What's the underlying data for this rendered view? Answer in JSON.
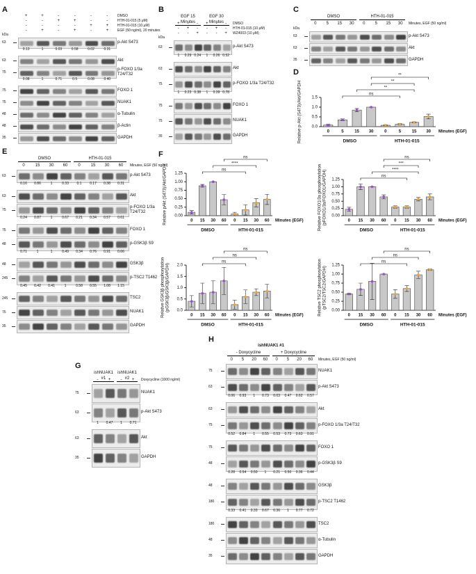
{
  "panels": [
    {
      "letter": "A",
      "rows": [
        {
          "label": "DMSO",
          "lanes": [
            "+",
            "+",
            "-",
            "-",
            "-",
            "-"
          ]
        },
        {
          "label": "HTH-01-015 (5 μM)",
          "lanes": [
            "-",
            "-",
            "+",
            "+",
            "-",
            "-"
          ]
        },
        {
          "label": "HTH-01-015 (10 μM)",
          "lanes": [
            "-",
            "-",
            "-",
            "-",
            "+",
            "+"
          ]
        },
        {
          "label": "EGF (50 ng/ml), 20 minutes",
          "lanes": [
            "-",
            "+",
            "-",
            "+",
            "-",
            "+"
          ]
        }
      ],
      "kda_label": "kDa",
      "blots": [
        {
          "label": "p-Akt S473",
          "kda": "63",
          "quant": [
            "0.13",
            "1",
            "0.03",
            "0.58",
            "0.02",
            "0.31"
          ]
        },
        {
          "label": "Akt",
          "kda": "63"
        },
        {
          "label": "p-FOXO 1/3a T24/T32",
          "kda": "75",
          "quant": [
            "0.08",
            "1",
            "0.71",
            "0.5",
            "0.08",
            "0.40"
          ]
        },
        {
          "label": "FOXO 1",
          "kda": "75"
        },
        {
          "label": "NUAK1",
          "kda": "75"
        },
        {
          "label": "α-Tubulin",
          "kda": "48"
        },
        {
          "label": "β-Actin",
          "kda": "48"
        },
        {
          "label": "GAPDH",
          "kda": "35"
        }
      ]
    },
    {
      "letter": "B",
      "groups": [
        "EGF 15 Minutes",
        "EGF 30 Minutes"
      ],
      "rows": [
        {
          "label": "DMSO",
          "lanes": [
            "+",
            "-",
            "-",
            "+",
            "-",
            "-"
          ]
        },
        {
          "label": "HTH-01-015 (10 μM)",
          "lanes": [
            "-",
            "+",
            "-",
            "-",
            "+",
            "-"
          ]
        },
        {
          "label": "WZ4003 (10 μM)",
          "lanes": [
            "-",
            "-",
            "+",
            "-",
            "-",
            "+"
          ]
        }
      ],
      "kda_label": "kDa",
      "blots": [
        {
          "label": "p-Akt S473",
          "kda": "63",
          "quant": [
            "1",
            "0.29",
            "0.24",
            "1",
            "0.26",
            "0.52"
          ]
        },
        {
          "label": "Akt",
          "kda": "63"
        },
        {
          "label": "p-FOXO 1/3a T24/T32",
          "kda": "75",
          "quant": [
            "1",
            "0.23",
            "0.38",
            "1",
            "0.39",
            "0.78"
          ]
        },
        {
          "label": "FOXO 1",
          "kda": "75"
        },
        {
          "label": "NUAK1",
          "kda": "75"
        },
        {
          "label": "GAPDH",
          "kda": "35"
        }
      ]
    },
    {
      "letter": "C",
      "groups": [
        "DMSO",
        "HTH-01-015"
      ],
      "rows": [
        {
          "label": "Minutes, EGF (50 ng/ml)",
          "lanes": [
            "0",
            "5",
            "15",
            "30",
            "0",
            "5",
            "15",
            "30"
          ]
        }
      ],
      "kda_label": "kDa",
      "blots": [
        {
          "label": "p-Akt S473",
          "kda": "63"
        },
        {
          "label": "Akt",
          "kda": "63"
        },
        {
          "label": "GAPDH",
          "kda": "35"
        }
      ]
    },
    {
      "letter": "E",
      "groups": [
        "DMSO",
        "HTH-01-015"
      ],
      "rows": [
        {
          "label": "Minutes, EGF (50 ng/ml)",
          "lanes": [
            "0",
            "15",
            "30",
            "60",
            "0",
            "15",
            "30",
            "60"
          ]
        }
      ],
      "blots": [
        {
          "label": "p-Akt S473",
          "kda": "63",
          "quant": [
            "0.16",
            "0.86",
            "1",
            "0.33",
            "0.1",
            "0.17",
            "0.38",
            "0.31"
          ]
        },
        {
          "label": "Akt",
          "kda": "63"
        },
        {
          "label": "p-FOXO 1/3a T24/T32",
          "kda": "75",
          "quant": [
            "0.24",
            "0.87",
            "1",
            "0.67",
            "0.21",
            "0.34",
            "0.57",
            "0.61"
          ]
        },
        {
          "label": "FOXO 1",
          "kda": "75"
        },
        {
          "label": "p-GSK3β S9",
          "kda": "48",
          "quant": [
            "0.71",
            "1",
            "1",
            "0.49",
            "0.34",
            "0.76",
            "0.91",
            "0.66"
          ]
        },
        {
          "label": "GSK3β",
          "kda": "48"
        },
        {
          "label": "p-TSC2 T1462",
          "kda": "245",
          "quant": [
            "0.45",
            "0.42",
            "0.41",
            "1",
            "0.58",
            "0.55",
            "1.08",
            "1.15"
          ]
        },
        {
          "label": "TSC2",
          "kda": "245"
        },
        {
          "label": "NUAK1",
          "kda": "75"
        },
        {
          "label": "GAPDH",
          "kda": "35"
        }
      ]
    },
    {
      "letter": "G",
      "groups": [
        "ishNUAK1 #1",
        "ishNUAK1 #2"
      ],
      "rows": [
        {
          "label": "Doxycycline (1000 ng/ml)",
          "lanes": [
            "-",
            "+",
            "-",
            "+"
          ]
        }
      ],
      "blots": [
        {
          "label": "NUAK1",
          "kda": "75"
        },
        {
          "label": "p-Akt S473",
          "kda": "63",
          "quant": [
            "1",
            "0.47",
            "1",
            "0.71"
          ]
        },
        {
          "label": "Akt",
          "kda": "63"
        },
        {
          "label": "GAPDH",
          "kda": "35"
        }
      ]
    },
    {
      "letter": "H",
      "title": "ishNUAK1 #1",
      "groups": [
        "- Doxycycline",
        "+ Doxycycline"
      ],
      "rows": [
        {
          "label": "Minutes,  EGF (50 ng/ml)",
          "lanes": [
            "0",
            "5",
            "20",
            "60",
            "0",
            "5",
            "20",
            "60"
          ]
        }
      ],
      "blots": [
        {
          "label": "NUAK1",
          "kda": "75"
        },
        {
          "label": "p-Akt S473",
          "kda": "63",
          "quant": [
            "0.06",
            "0.93",
            "1",
            "0.73",
            "0.03",
            "0.47",
            "0.62",
            "0.57"
          ]
        },
        {
          "label": "Akt",
          "kda": "63"
        },
        {
          "label": "p-FOXO 1/3a T24/T32",
          "kda": "75",
          "quant": [
            "0.52",
            "0.84",
            "1",
            "0.55",
            "0.53",
            "0.73",
            "0.63",
            "0.91"
          ]
        },
        {
          "label": "FOXO 1",
          "kda": "75"
        },
        {
          "label": "p-GSK3β S9",
          "kda": "48",
          "quant": [
            "0.28",
            "0.54",
            "0.50",
            "1",
            "0.21",
            "0.50",
            "0.36",
            "0.44"
          ]
        },
        {
          "label": "GSK3β",
          "kda": "48"
        },
        {
          "label": "p-TSC2 T1462",
          "kda": "180",
          "quant": [
            "0.33",
            "0.41",
            "0.33",
            "0.67",
            "0.36",
            "1",
            "0.77",
            "0.72"
          ]
        },
        {
          "label": "TSC2",
          "kda": "180"
        },
        {
          "label": "α-Tubulin",
          "kda": "48"
        },
        {
          "label": "GAPDH",
          "kda": "35"
        }
      ]
    }
  ],
  "chart_data": [
    {
      "type": "bar",
      "panel": "D",
      "ylabel": [
        "Relative p-Akt (S473)/Akt/GAPDH"
      ],
      "categories": [
        "0",
        "5",
        "15",
        "30",
        "0",
        "5",
        "15",
        "30"
      ],
      "xlabel": "Minutes (EGF)",
      "groups": [
        "DMSO",
        "HTH-01-015"
      ],
      "values": [
        0.08,
        0.35,
        0.85,
        1.0,
        0.07,
        0.12,
        0.22,
        0.52
      ],
      "errors": [
        0.04,
        0.05,
        0.08,
        0.0,
        0.02,
        0.04,
        0.03,
        0.12
      ],
      "color": "#c8c8c8",
      "point_colors": [
        "#9b4dca",
        "#f0a030"
      ],
      "ylim": [
        0,
        1.5
      ],
      "yticks": [
        {
          "value": 0,
          "label": "0.0"
        },
        {
          "value": 0.5,
          "label": "0.5"
        },
        {
          "value": 1,
          "label": "1.0"
        },
        {
          "value": 1.5,
          "label": "1.5"
        }
      ],
      "significance": [
        "ns",
        "**",
        "**",
        "**"
      ]
    },
    {
      "type": "bar",
      "panel": "F",
      "ylabel": [
        "Relative pAkt (S473)/Akt/GAPDH"
      ],
      "categories": [
        "0",
        "15",
        "30",
        "60",
        "0",
        "15",
        "30",
        "60"
      ],
      "xlabel": "Minutes (EGF)",
      "groups": [
        "DMSO",
        "HTH-01-015"
      ],
      "values": [
        0.1,
        0.88,
        1.0,
        0.47,
        0.05,
        0.17,
        0.38,
        0.48
      ],
      "errors": [
        0.05,
        0.04,
        0.0,
        0.15,
        0.05,
        0.15,
        0.12,
        0.15
      ],
      "color": "#c8c8c8",
      "point_colors": [
        "#9b4dca",
        "#f0a030"
      ],
      "ylim": [
        0,
        1.25
      ],
      "yticks": [
        {
          "value": 0,
          "label": "0.00"
        },
        {
          "value": 0.25,
          "label": "0.25"
        },
        {
          "value": 0.5,
          "label": "0.50"
        },
        {
          "value": 0.75,
          "label": "0.75"
        },
        {
          "value": 1,
          "label": "1.00"
        },
        {
          "value": 1.25,
          "label": "1.25"
        }
      ],
      "significance": [
        "ns",
        "****",
        "ns"
      ]
    },
    {
      "type": "bar",
      "ylabel": [
        "Relative FOXO1/3a phosphorylation",
        "(pFOXO1/3a/FOXO1/GAPDH)"
      ],
      "categories": [
        "0",
        "15",
        "30",
        "60",
        "0",
        "15",
        "30",
        "60"
      ],
      "xlabel": "Minutes (EGF)",
      "groups": [
        "DMSO",
        "HTH-01-015"
      ],
      "values": [
        0.22,
        1.0,
        1.0,
        0.65,
        0.3,
        0.3,
        0.57,
        0.65
      ],
      "errors": [
        0.07,
        0.1,
        0.0,
        0.07,
        0.04,
        0.04,
        0.06,
        0.1
      ],
      "color": "#c8c8c8",
      "point_colors": [
        "#9b4dca",
        "#f0a030"
      ],
      "ylim": [
        0,
        1.25
      ],
      "yticks": [
        {
          "value": 0,
          "label": "0.00"
        },
        {
          "value": 0.25,
          "label": "0.25"
        },
        {
          "value": 0.5,
          "label": "0.50"
        },
        {
          "value": 0.75,
          "label": "0.75"
        },
        {
          "value": 1,
          "label": "1.00"
        },
        {
          "value": 1.25,
          "label": "1.25"
        }
      ],
      "significance": [
        "ns",
        "****",
        "***",
        "ns"
      ]
    },
    {
      "type": "bar",
      "ylabel": [
        "Relative GSK3β phosphorylation",
        "(pGSK3β/GSK3β/GAPDH)"
      ],
      "categories": [
        "0",
        "15",
        "30",
        "60",
        "0",
        "15",
        "30",
        "60"
      ],
      "xlabel": "Minutes (EGF)",
      "groups": [
        "DMSO",
        "HTH-01-015"
      ],
      "values": [
        0.4,
        0.75,
        0.8,
        1.3,
        0.25,
        0.6,
        0.8,
        0.85
      ],
      "errors": [
        0.25,
        0.45,
        0.5,
        0.6,
        0.2,
        0.3,
        0.15,
        0.3
      ],
      "color": "#c8c8c8",
      "point_colors": [
        "#9b4dca",
        "#f0a030"
      ],
      "ylim": [
        0,
        2
      ],
      "yticks": [
        {
          "value": 0,
          "label": "0.0"
        },
        {
          "value": 0.5,
          "label": "0.5"
        },
        {
          "value": 1,
          "label": "1.0"
        },
        {
          "value": 1.5,
          "label": "1.5"
        },
        {
          "value": 2,
          "label": "2.0"
        }
      ],
      "significance": [
        "ns",
        "ns",
        "ns"
      ]
    },
    {
      "type": "bar",
      "ylabel": [
        "Relative TSC2 phosphorylation",
        "(pTSC2/TSC2/GAPDH)"
      ],
      "categories": [
        "0",
        "15",
        "30",
        "60",
        "0",
        "15",
        "30",
        "60"
      ],
      "xlabel": "Minutes (EGF)",
      "groups": [
        "DMSO",
        "HTH-01-015"
      ],
      "values": [
        0.45,
        0.58,
        0.8,
        1.0,
        0.45,
        0.6,
        0.98,
        1.12
      ],
      "errors": [
        0.02,
        0.17,
        0.5,
        0.0,
        0.12,
        0.08,
        0.1,
        0.02
      ],
      "color": "#c8c8c8",
      "point_colors": [
        "#9b4dca",
        "#f0a030"
      ],
      "ylim": [
        0,
        1.25
      ],
      "yticks": [
        {
          "value": 0,
          "label": "0.00"
        },
        {
          "value": 0.25,
          "label": "0.25"
        },
        {
          "value": 0.5,
          "label": "0.50"
        },
        {
          "value": 0.75,
          "label": "0.75"
        },
        {
          "value": 1,
          "label": "1.00"
        },
        {
          "value": 1.25,
          "label": "1.25"
        }
      ],
      "significance": [
        "ns",
        "ns",
        "ns"
      ]
    }
  ]
}
